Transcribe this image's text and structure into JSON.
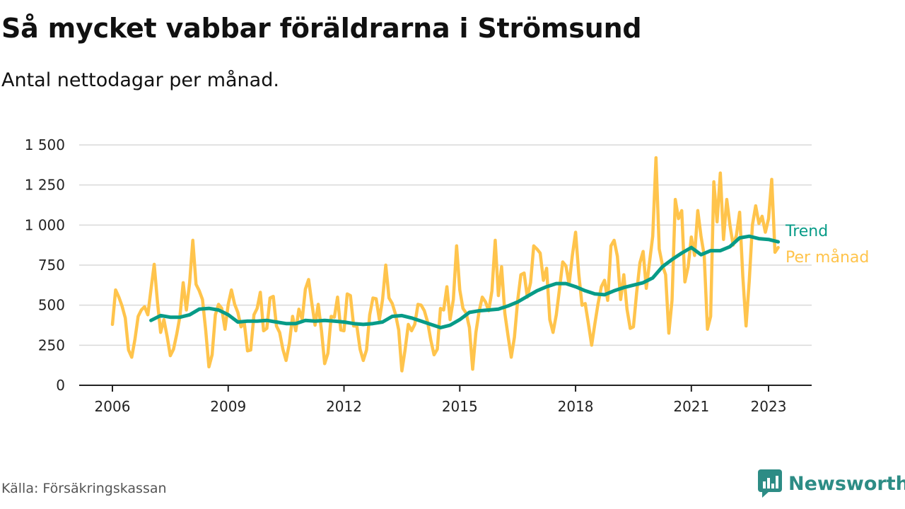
{
  "header": {
    "title": "Så mycket vabbar föräldrarna i Strömsund",
    "subtitle": "Antal nettodagar per månad."
  },
  "footer": {
    "source": "Källa: Försäkringskassan",
    "brand": "Newsworthy"
  },
  "colors": {
    "monthly": "#ffc44c",
    "trend": "#079b87",
    "grid": "#d9d9d9",
    "axis": "#222222",
    "brand": "#2d8c85"
  },
  "icons": {
    "brand_logo": "bar-chart-speech-bubble-icon"
  },
  "chart_data": {
    "type": "line",
    "title": "Så mycket vabbar föräldrarna i Strömsund",
    "subtitle": "Antal nettodagar per månad.",
    "xlabel": "",
    "ylabel": "",
    "x_unit": "decimal year",
    "xlim": [
      2005.2,
      2024.2
    ],
    "ylim": [
      0,
      1500
    ],
    "grid": true,
    "y_ticks": [
      {
        "value": 0,
        "label": "0"
      },
      {
        "value": 250,
        "label": "250"
      },
      {
        "value": 500,
        "label": "500"
      },
      {
        "value": 750,
        "label": "750"
      },
      {
        "value": 1000,
        "label": "1 000"
      },
      {
        "value": 1250,
        "label": "1 250"
      },
      {
        "value": 1500,
        "label": "1 500"
      }
    ],
    "x_ticks": [
      {
        "value": 2006,
        "label": "2006"
      },
      {
        "value": 2009,
        "label": "2009"
      },
      {
        "value": 2012,
        "label": "2012"
      },
      {
        "value": 2015,
        "label": "2015"
      },
      {
        "value": 2018,
        "label": "2018"
      },
      {
        "value": 2021,
        "label": "2021"
      },
      {
        "value": 2023,
        "label": "2023"
      }
    ],
    "series": [
      {
        "name": "Per månad",
        "color": "#ffc44c",
        "x": [
          2006.0,
          2006.083,
          2006.167,
          2006.25,
          2006.333,
          2006.417,
          2006.5,
          2006.583,
          2006.667,
          2006.75,
          2006.833,
          2006.917,
          2007.0,
          2007.083,
          2007.167,
          2007.25,
          2007.333,
          2007.417,
          2007.5,
          2007.583,
          2007.667,
          2007.75,
          2007.833,
          2007.917,
          2008.0,
          2008.083,
          2008.167,
          2008.25,
          2008.333,
          2008.417,
          2008.5,
          2008.583,
          2008.667,
          2008.75,
          2008.833,
          2008.917,
          2009.0,
          2009.083,
          2009.167,
          2009.25,
          2009.333,
          2009.417,
          2009.5,
          2009.583,
          2009.667,
          2009.75,
          2009.833,
          2009.917,
          2010.0,
          2010.083,
          2010.167,
          2010.25,
          2010.333,
          2010.417,
          2010.5,
          2010.583,
          2010.667,
          2010.75,
          2010.833,
          2010.917,
          2011.0,
          2011.083,
          2011.167,
          2011.25,
          2011.333,
          2011.417,
          2011.5,
          2011.583,
          2011.667,
          2011.75,
          2011.833,
          2011.917,
          2012.0,
          2012.083,
          2012.167,
          2012.25,
          2012.333,
          2012.417,
          2012.5,
          2012.583,
          2012.667,
          2012.75,
          2012.833,
          2012.917,
          2013.0,
          2013.083,
          2013.167,
          2013.25,
          2013.333,
          2013.417,
          2013.5,
          2013.583,
          2013.667,
          2013.75,
          2013.833,
          2013.917,
          2014.0,
          2014.083,
          2014.167,
          2014.25,
          2014.333,
          2014.417,
          2014.5,
          2014.583,
          2014.667,
          2014.75,
          2014.833,
          2014.917,
          2015.0,
          2015.083,
          2015.167,
          2015.25,
          2015.333,
          2015.417,
          2015.5,
          2015.583,
          2015.667,
          2015.75,
          2015.833,
          2015.917,
          2016.0,
          2016.083,
          2016.167,
          2016.25,
          2016.333,
          2016.417,
          2016.5,
          2016.583,
          2016.667,
          2016.75,
          2016.833,
          2016.917,
          2017.0,
          2017.083,
          2017.167,
          2017.25,
          2017.333,
          2017.417,
          2017.5,
          2017.583,
          2017.667,
          2017.75,
          2017.833,
          2017.917,
          2018.0,
          2018.083,
          2018.167,
          2018.25,
          2018.333,
          2018.417,
          2018.5,
          2018.583,
          2018.667,
          2018.75,
          2018.833,
          2018.917,
          2019.0,
          2019.083,
          2019.167,
          2019.25,
          2019.333,
          2019.417,
          2019.5,
          2019.583,
          2019.667,
          2019.75,
          2019.833,
          2019.917,
          2020.0,
          2020.083,
          2020.167,
          2020.25,
          2020.333,
          2020.417,
          2020.5,
          2020.583,
          2020.667,
          2020.75,
          2020.833,
          2020.917,
          2021.0,
          2021.083,
          2021.167,
          2021.25,
          2021.333,
          2021.417,
          2021.5,
          2021.583,
          2021.667,
          2021.75,
          2021.833,
          2021.917,
          2022.0,
          2022.083,
          2022.167,
          2022.25,
          2022.333,
          2022.417,
          2022.5,
          2022.583,
          2022.667,
          2022.75,
          2022.833,
          2022.917,
          2023.0,
          2023.083,
          2023.167,
          2023.25
        ],
        "values": [
          380,
          595,
          550,
          495,
          420,
          220,
          175,
          285,
          430,
          470,
          490,
          440,
          600,
          755,
          520,
          330,
          410,
          305,
          185,
          225,
          320,
          430,
          640,
          470,
          640,
          905,
          630,
          590,
          535,
          345,
          115,
          190,
          440,
          505,
          480,
          350,
          505,
          595,
          505,
          455,
          365,
          390,
          215,
          220,
          440,
          480,
          580,
          340,
          355,
          545,
          555,
          370,
          330,
          225,
          155,
          260,
          430,
          340,
          475,
          410,
          600,
          660,
          510,
          375,
          505,
          340,
          135,
          200,
          430,
          425,
          550,
          345,
          340,
          570,
          560,
          370,
          370,
          225,
          155,
          220,
          440,
          545,
          540,
          410,
          535,
          750,
          545,
          510,
          445,
          345,
          90,
          220,
          380,
          340,
          380,
          505,
          500,
          465,
          395,
          280,
          190,
          225,
          480,
          470,
          615,
          410,
          535,
          870,
          595,
          480,
          450,
          360,
          100,
          330,
          460,
          550,
          520,
          465,
          590,
          905,
          560,
          740,
          450,
          310,
          175,
          300,
          530,
          690,
          700,
          550,
          640,
          870,
          850,
          825,
          655,
          730,
          410,
          330,
          440,
          600,
          770,
          745,
          630,
          810,
          955,
          695,
          500,
          510,
          385,
          250,
          385,
          510,
          615,
          655,
          530,
          870,
          905,
          805,
          535,
          690,
          475,
          355,
          365,
          580,
          765,
          835,
          605,
          770,
          930,
          1420,
          850,
          750,
          690,
          325,
          530,
          1160,
          1040,
          1090,
          645,
          740,
          925,
          810,
          1090,
          930,
          810,
          350,
          430,
          1270,
          1020,
          1325,
          910,
          1160,
          1000,
          875,
          935,
          1080,
          680,
          370,
          650,
          1000,
          1120,
          1010,
          1055,
          955,
          1040,
          1285,
          830,
          860
        ]
      },
      {
        "name": "Trend",
        "color": "#079b87",
        "x": [
          2007.0,
          2007.25,
          2007.5,
          2007.75,
          2008.0,
          2008.25,
          2008.5,
          2008.75,
          2009.0,
          2009.25,
          2009.5,
          2009.75,
          2010.0,
          2010.25,
          2010.5,
          2010.75,
          2011.0,
          2011.25,
          2011.5,
          2011.75,
          2012.0,
          2012.25,
          2012.5,
          2012.75,
          2013.0,
          2013.25,
          2013.5,
          2013.75,
          2014.0,
          2014.25,
          2014.5,
          2014.75,
          2015.0,
          2015.25,
          2015.5,
          2015.75,
          2016.0,
          2016.25,
          2016.5,
          2016.75,
          2017.0,
          2017.25,
          2017.5,
          2017.75,
          2018.0,
          2018.25,
          2018.5,
          2018.75,
          2019.0,
          2019.25,
          2019.5,
          2019.75,
          2020.0,
          2020.25,
          2020.5,
          2020.75,
          2021.0,
          2021.25,
          2021.5,
          2021.75,
          2022.0,
          2022.25,
          2022.5,
          2022.75,
          2023.0,
          2023.25
        ],
        "values": [
          405,
          435,
          425,
          425,
          440,
          475,
          480,
          470,
          440,
          395,
          400,
          400,
          405,
          395,
          385,
          385,
          405,
          400,
          405,
          400,
          395,
          385,
          380,
          385,
          395,
          430,
          435,
          420,
          400,
          380,
          360,
          375,
          410,
          455,
          465,
          470,
          475,
          495,
          520,
          555,
          590,
          615,
          635,
          635,
          615,
          590,
          570,
          565,
          590,
          610,
          625,
          640,
          670,
          740,
          785,
          825,
          860,
          815,
          840,
          840,
          865,
          920,
          930,
          915,
          910,
          895
        ]
      }
    ],
    "legend": [
      {
        "name": "Trend",
        "placement": "right of line end"
      },
      {
        "name": "Per månad",
        "placement": "right of line end"
      }
    ]
  }
}
